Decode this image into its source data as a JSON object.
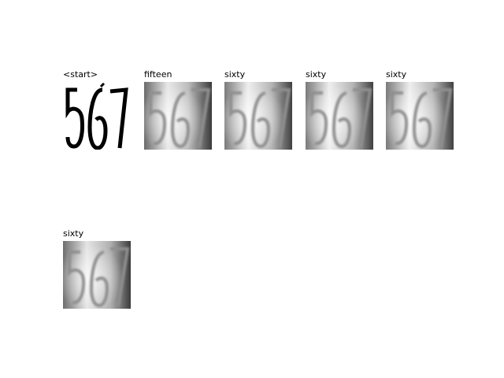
{
  "panels": [
    {
      "label": "<start>",
      "digits": "567",
      "style": "clean"
    },
    {
      "label": "fifteen",
      "digits": "567",
      "style": "blurred"
    },
    {
      "label": "sixty",
      "digits": "567",
      "style": "blurred"
    },
    {
      "label": "sixty",
      "digits": "567",
      "style": "blurred"
    },
    {
      "label": "sixty",
      "digits": "567",
      "style": "blurred"
    },
    {
      "label": "sixty",
      "digits": "567",
      "style": "blurred"
    }
  ]
}
